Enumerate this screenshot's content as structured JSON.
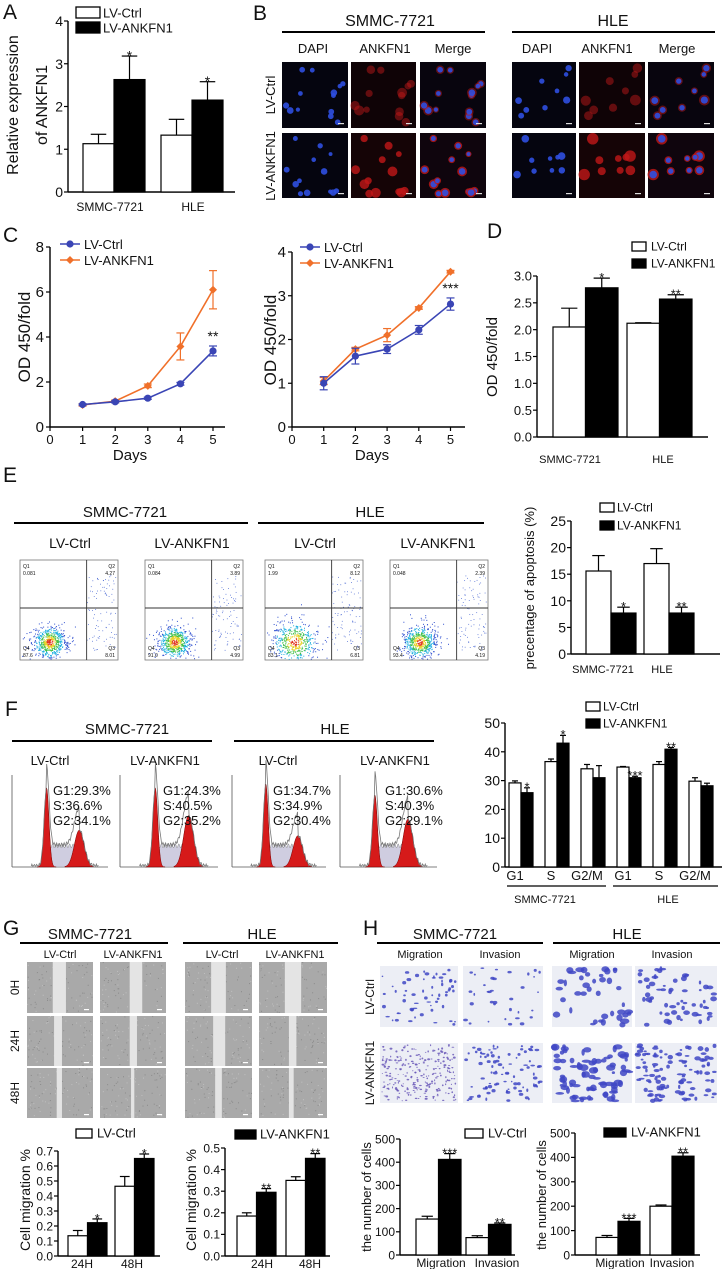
{
  "figure": {
    "panel_labels": [
      "A",
      "B",
      "C",
      "D",
      "E",
      "F",
      "G",
      "H"
    ],
    "legend": {
      "ctrl": "LV-Ctrl",
      "ank": "LV-ANKFN1"
    },
    "cell_lines": [
      "SMMC-7721",
      "HLE"
    ],
    "panel_b": {
      "columns": [
        "DAPI",
        "ANKFN1",
        "Merge"
      ],
      "rows": [
        "LV-Ctrl",
        "LV-ANKFN1"
      ]
    },
    "panel_e": {
      "groups": [
        "LV-Ctrl",
        "LV-ANKFN1",
        "LV-Ctrl",
        "LV-ANKFN1"
      ],
      "quadrants": [
        "Q1",
        "Q2",
        "Q3",
        "Q4"
      ],
      "plots": [
        {
          "q1": "0.081",
          "q2": "4.27",
          "q3": "8.01",
          "q4": "87.6"
        },
        {
          "q1": "0.084",
          "q2": "3.89",
          "q3": "4.99",
          "q4": "91.0"
        },
        {
          "q1": "1.99",
          "q2": "8.12",
          "q3": "6.81",
          "q4": "83.1"
        },
        {
          "q1": "0.048",
          "q2": "2.39",
          "q3": "4.19",
          "q4": "93.4"
        }
      ]
    },
    "panel_f": {
      "groups": [
        "LV-Ctrl",
        "LV-ANKFN1",
        "LV-Ctrl",
        "LV-ANKFN1"
      ],
      "plots": [
        {
          "g1": "G1:29.3%",
          "s": "S:36.6%",
          "g2": "G2:34.1%"
        },
        {
          "g1": "G1:24.3%",
          "s": "S:40.5%",
          "g2": "G2:35.2%"
        },
        {
          "g1": "G1:34.7%",
          "s": "S:34.9%",
          "g2": "G2:30.4%"
        },
        {
          "g1": "G1:30.6%",
          "s": "S:40.3%",
          "g2": "G2:29.1%"
        }
      ]
    },
    "panel_g": {
      "groups": [
        "LV-Ctrl",
        "LV-ANKFN1",
        "LV-Ctrl",
        "LV-ANKFN1"
      ],
      "timepoints": [
        "0H",
        "24H",
        "48H"
      ]
    },
    "panel_h": {
      "assays": [
        "Migration",
        "Invasion",
        "Migration",
        "Invasion"
      ],
      "rows": [
        "LV-Ctrl",
        "LV-ANKFN1"
      ]
    }
  },
  "chart_data": [
    {
      "id": "A",
      "type": "bar",
      "ylabel": [
        "Relative expression",
        "of ANKFN1"
      ],
      "categories": [
        "SMMC-7721",
        "HLE"
      ],
      "series": [
        {
          "name": "LV-Ctrl",
          "values": [
            1.13,
            1.33
          ],
          "errors": [
            0.22,
            0.37
          ]
        },
        {
          "name": "LV-ANKFN1",
          "values": [
            2.63,
            2.15
          ],
          "errors": [
            0.55,
            0.43
          ]
        }
      ],
      "significance": [
        "*",
        "*"
      ],
      "ylim": [
        0,
        4
      ],
      "yticks": [
        "0",
        "1",
        "2",
        "3",
        "4"
      ]
    },
    {
      "id": "C-SMMC-7721",
      "type": "line",
      "ylabel": "OD 450/fold",
      "xlabel": "Days",
      "x": [
        1,
        2,
        3,
        4,
        5
      ],
      "xlim": [
        0,
        5
      ],
      "xticks": [
        "0",
        "1",
        "2",
        "3",
        "4",
        "5"
      ],
      "ylim": [
        0,
        8
      ],
      "yticks": [
        "0",
        "2",
        "4",
        "6",
        "8"
      ],
      "series": [
        {
          "name": "LV-Ctrl",
          "color": "#3a45b5",
          "values": [
            1.0,
            1.12,
            1.28,
            1.92,
            3.38
          ],
          "errors": [
            0.03,
            0.05,
            0.05,
            0.06,
            0.22
          ]
        },
        {
          "name": "LV-ANKFN1",
          "color": "#f0702a",
          "values": [
            0.98,
            1.15,
            1.83,
            3.58,
            6.1
          ],
          "errors": [
            0.05,
            0.05,
            0.08,
            0.6,
            0.85
          ]
        }
      ],
      "annotation": "**"
    },
    {
      "id": "C-HLE",
      "type": "line",
      "ylabel": "OD 450/fold",
      "xlabel": "Days",
      "x": [
        1,
        2,
        3,
        4,
        5
      ],
      "xlim": [
        0,
        5
      ],
      "xticks": [
        "0",
        "1",
        "2",
        "3",
        "4",
        "5"
      ],
      "ylim": [
        0,
        4
      ],
      "yticks": [
        "0",
        "1",
        "2",
        "3",
        "4"
      ],
      "series": [
        {
          "name": "LV-Ctrl",
          "color": "#3a45b5",
          "values": [
            1.0,
            1.62,
            1.78,
            2.22,
            2.81
          ],
          "errors": [
            0.15,
            0.18,
            0.1,
            0.1,
            0.14
          ]
        },
        {
          "name": "LV-ANKFN1",
          "color": "#f0702a",
          "values": [
            1.05,
            1.78,
            2.1,
            2.72,
            3.55
          ],
          "errors": [
            0.08,
            0.04,
            0.15,
            0.03,
            0.03
          ]
        }
      ],
      "annotation": "***"
    },
    {
      "id": "D",
      "type": "bar",
      "ylabel": "OD 450/fold",
      "categories": [
        "SMMC-7721",
        "HLE"
      ],
      "series": [
        {
          "name": "LV-Ctrl",
          "values": [
            2.05,
            2.12
          ],
          "errors": [
            0.35,
            0.01
          ]
        },
        {
          "name": "LV-ANKFN1",
          "values": [
            2.78,
            2.57
          ],
          "errors": [
            0.18,
            0.08
          ]
        }
      ],
      "significance": [
        "*",
        "**"
      ],
      "ylim": [
        0,
        3
      ],
      "yticks": [
        "0.0",
        "0.5",
        "1.0",
        "1.5",
        "2.0",
        "2.5",
        "3.0"
      ]
    },
    {
      "id": "E",
      "type": "bar",
      "ylabel": "precentage of apoptosis (%)",
      "categories": [
        "SMMC-7721",
        "HLE"
      ],
      "series": [
        {
          "name": "LV-Ctrl",
          "values": [
            15.6,
            17.0
          ],
          "errors": [
            2.9,
            2.8
          ]
        },
        {
          "name": "LV-ANKFN1",
          "values": [
            7.7,
            7.7
          ],
          "errors": [
            1.1,
            1.1
          ]
        }
      ],
      "significance": [
        "*",
        "**"
      ],
      "ylim": [
        0,
        25
      ],
      "yticks": [
        "0",
        "5",
        "10",
        "15",
        "20",
        "25"
      ]
    },
    {
      "id": "F",
      "type": "bar",
      "ylabel": "",
      "categories": [
        "G1",
        "S",
        "G2/M",
        "G1",
        "S",
        "G2/M"
      ],
      "groups": [
        "SMMC-7721",
        "HLE"
      ],
      "series": [
        {
          "name": "LV-Ctrl",
          "values": [
            29.2,
            36.6,
            34.1,
            34.7,
            35.6,
            29.8
          ],
          "errors": [
            0.7,
            0.9,
            1.5,
            0.2,
            1.0,
            1.2
          ]
        },
        {
          "name": "LV-ANKFN1",
          "values": [
            25.8,
            43.0,
            31.0,
            31.0,
            40.9,
            28.2
          ],
          "errors": [
            1.7,
            2.7,
            4.2,
            0.5,
            0.6,
            0.9
          ]
        }
      ],
      "significance": [
        "*",
        "*",
        "",
        "***",
        "**",
        ""
      ],
      "ylim": [
        0,
        50
      ],
      "yticks": [
        "0",
        "10",
        "20",
        "30",
        "40",
        "50"
      ]
    },
    {
      "id": "G-SMMC-7721",
      "type": "bar",
      "ylabel": "Cell migration %",
      "categories": [
        "24H",
        "48H"
      ],
      "series": [
        {
          "name": "LV-Ctrl",
          "values": [
            0.135,
            0.465
          ],
          "errors": [
            0.035,
            0.065
          ]
        },
        {
          "name": "LV-ANKFN1",
          "values": [
            0.222,
            0.65
          ],
          "errors": [
            0.025,
            0.03
          ]
        }
      ],
      "significance": [
        "*",
        "*"
      ],
      "ylim": [
        0,
        0.7
      ],
      "yticks": [
        "0.0",
        "0.1",
        "0.2",
        "0.3",
        "0.4",
        "0.5",
        "0.6",
        "0.7"
      ]
    },
    {
      "id": "G-HLE",
      "type": "bar",
      "ylabel": "Cell migration %",
      "categories": [
        "24H",
        "48H"
      ],
      "series": [
        {
          "name": "LV-Ctrl",
          "values": [
            0.185,
            0.35
          ],
          "errors": [
            0.015,
            0.017
          ]
        },
        {
          "name": "LV-ANKFN1",
          "values": [
            0.295,
            0.452
          ],
          "errors": [
            0.017,
            0.022
          ]
        }
      ],
      "significance": [
        "**",
        "**"
      ],
      "ylim": [
        0,
        0.5
      ],
      "yticks": [
        "0.0",
        "0.1",
        "0.2",
        "0.3",
        "0.4",
        "0.5"
      ]
    },
    {
      "id": "H-SMMC-7721",
      "type": "bar",
      "ylabel": "the number of cells",
      "categories": [
        "Migration",
        "Invasion"
      ],
      "series": [
        {
          "name": "LV-Ctrl",
          "values": [
            155,
            75
          ],
          "errors": [
            12,
            8
          ]
        },
        {
          "name": "LV-ANKFN1",
          "values": [
            412,
            132
          ],
          "errors": [
            25,
            6
          ]
        }
      ],
      "significance": [
        "***",
        "**"
      ],
      "ylim": [
        0,
        500
      ],
      "yticks": [
        "0",
        "100",
        "200",
        "300",
        "400",
        "500"
      ]
    },
    {
      "id": "H-HLE",
      "type": "bar",
      "ylabel": "the number of cells",
      "categories": [
        "Migration",
        "Invasion"
      ],
      "series": [
        {
          "name": "LV-Ctrl",
          "values": [
            72,
            200
          ],
          "errors": [
            8,
            5
          ]
        },
        {
          "name": "LV-ANKFN1",
          "values": [
            138,
            405
          ],
          "errors": [
            12,
            14
          ]
        }
      ],
      "significance": [
        "***",
        "**"
      ],
      "ylim": [
        0,
        500
      ],
      "yticks": [
        "0",
        "100",
        "200",
        "300",
        "400",
        "500"
      ]
    }
  ]
}
